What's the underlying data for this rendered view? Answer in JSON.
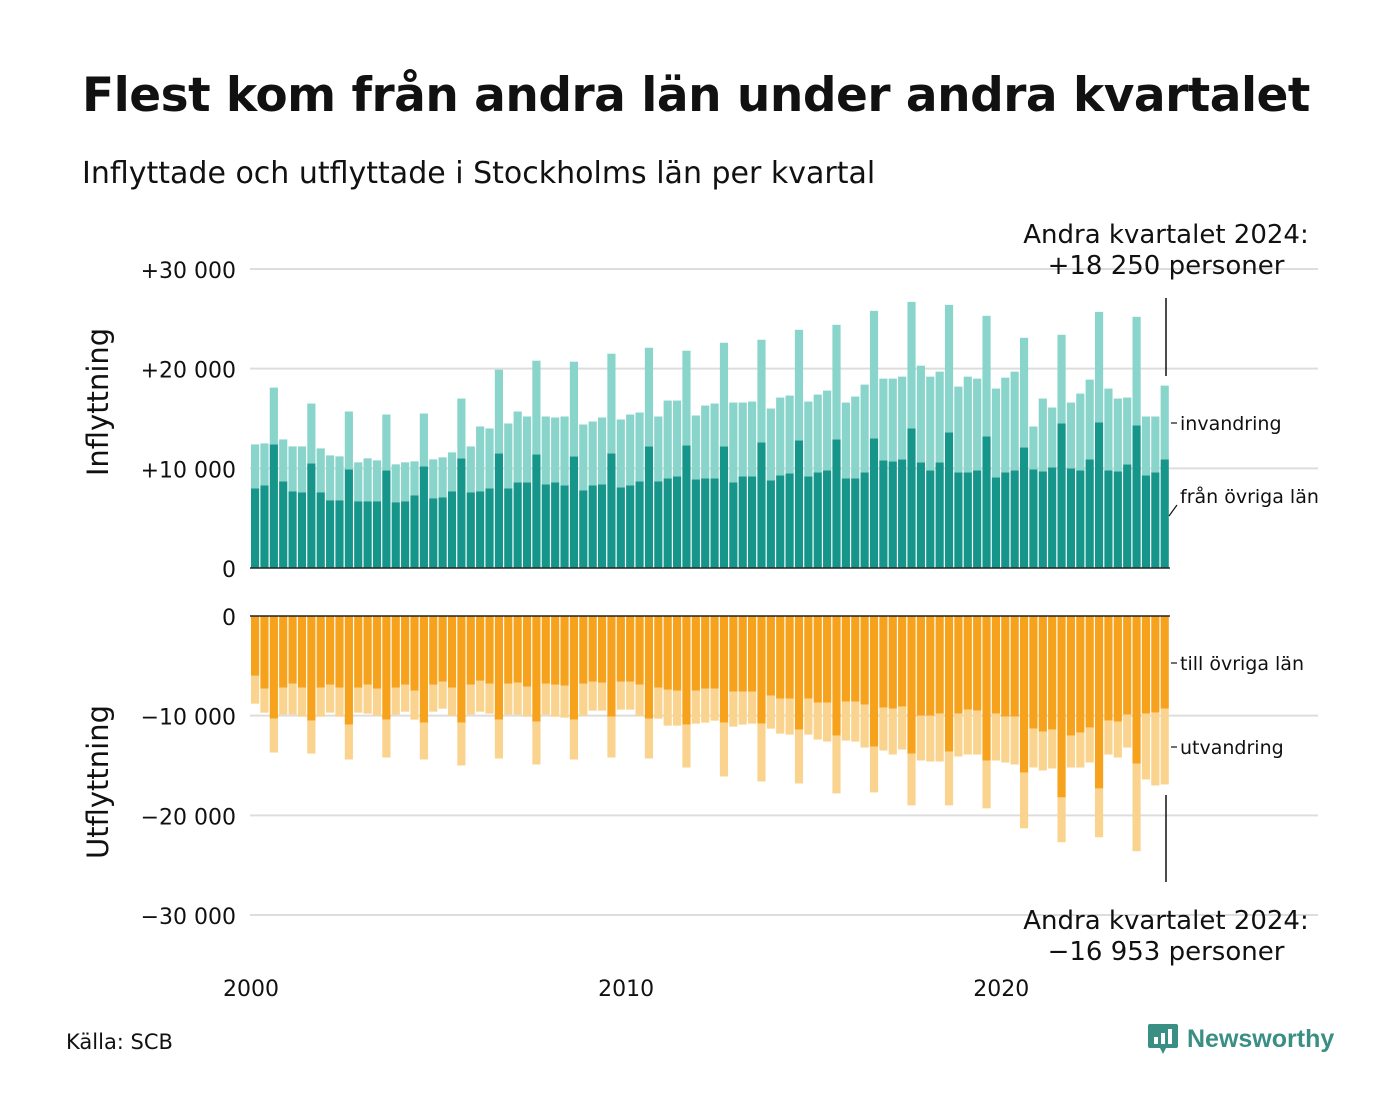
{
  "title": "Flest kom från andra län under andra kvartalet",
  "subtitle": "Inflyttade och utflyttade i Stockholms län per kvartal",
  "source": "Källa: SCB",
  "brand": "Newsworthy",
  "colors": {
    "in_domestic": "#16968a",
    "in_immigration": "#8ad5cb",
    "out_domestic": "#f6a21d",
    "out_emigration": "#fad48f",
    "grid": "#dddddd",
    "brand": "#3a8f84"
  },
  "chart_data": {
    "type": "bar",
    "stacked": true,
    "x_label": "",
    "x_ticks": [
      "2000",
      "2010",
      "2020"
    ],
    "x_range": [
      "2000 Q1",
      "2024 Q2"
    ],
    "grid": true,
    "panels": [
      {
        "name": "in",
        "ylabel": "Inflyttning",
        "yticks": [
          "+30 000",
          "+20 000",
          "+10 000",
          "0"
        ],
        "ylim": [
          0,
          30000
        ],
        "series": [
          {
            "name": "från övriga län",
            "values": [
              8000,
              8300,
              12400,
              8700,
              7700,
              7600,
              10500,
              7600,
              6800,
              6800,
              9900,
              6700,
              6700,
              6700,
              9800,
              6600,
              6700,
              7300,
              10200,
              7000,
              7100,
              7700,
              11000,
              7600,
              7700,
              8000,
              11500,
              8000,
              8600,
              8600,
              11400,
              8400,
              8600,
              8300,
              11200,
              7800,
              8300,
              8400,
              11500,
              8100,
              8300,
              8700,
              12200,
              8700,
              9000,
              9200,
              12300,
              8900,
              9000,
              9000,
              12200,
              8600,
              9200,
              9200,
              12600,
              8800,
              9300,
              9500,
              12800,
              9200,
              9600,
              9800,
              12900,
              9000,
              9000,
              9600,
              13000,
              10800,
              10700,
              10900,
              14000,
              10600,
              9800,
              10600,
              13600,
              9600,
              9600,
              9800,
              13200,
              9100,
              9600,
              9800,
              12100,
              9900,
              9700,
              10100,
              14500,
              10000,
              9800,
              10900,
              14600,
              9800,
              9700,
              10400,
              14300,
              9300,
              9600,
              10900
            ]
          },
          {
            "name": "invandring",
            "values": [
              4400,
              4200,
              5700,
              4200,
              4500,
              4600,
              6000,
              4400,
              4500,
              4400,
              5800,
              3900,
              4300,
              4100,
              5600,
              3800,
              3900,
              3400,
              5300,
              3900,
              4000,
              3900,
              6000,
              4600,
              6500,
              6000,
              8400,
              6500,
              7100,
              6600,
              9400,
              6800,
              6500,
              6900,
              9500,
              6600,
              6400,
              6700,
              10000,
              6800,
              7100,
              6900,
              9900,
              6500,
              7800,
              7600,
              9500,
              6400,
              7300,
              7500,
              10400,
              8000,
              7400,
              7500,
              10300,
              7200,
              7800,
              7800,
              11100,
              7500,
              7800,
              8000,
              11500,
              7600,
              8200,
              8800,
              12800,
              8200,
              8300,
              8300,
              12700,
              9700,
              9400,
              9100,
              12800,
              8600,
              9600,
              9200,
              12100,
              8900,
              9500,
              9900,
              11000,
              4300,
              7300,
              6000,
              8900,
              6600,
              7700,
              8000,
              11100,
              8200,
              7300,
              6700,
              10900,
              5900,
              5600,
              7400
            ]
          }
        ],
        "annotation": [
          "Andra kvartalet 2024:",
          "+18 250 personer"
        ],
        "series_labels": [
          "invandring",
          "från övriga län"
        ]
      },
      {
        "name": "out",
        "ylabel": "Utflyttning",
        "yticks": [
          "0",
          "−10 000",
          "−20 000",
          "−30 000"
        ],
        "ylim": [
          -30000,
          0
        ],
        "series": [
          {
            "name": "till övriga län",
            "values": [
              -6000,
              -7300,
              -10300,
              -7200,
              -6800,
              -7200,
              -10500,
              -7200,
              -6900,
              -7200,
              -10900,
              -7200,
              -6900,
              -7300,
              -10400,
              -7200,
              -6900,
              -7500,
              -10700,
              -6900,
              -6600,
              -7200,
              -10700,
              -6900,
              -6500,
              -6800,
              -10400,
              -6800,
              -6700,
              -7100,
              -10600,
              -6800,
              -6900,
              -7000,
              -10400,
              -6800,
              -6600,
              -6700,
              -10100,
              -6600,
              -6600,
              -6900,
              -10300,
              -7200,
              -7400,
              -7500,
              -10900,
              -7500,
              -7300,
              -7300,
              -10700,
              -7600,
              -7600,
              -7600,
              -10800,
              -8000,
              -8300,
              -8300,
              -11400,
              -8300,
              -8700,
              -8700,
              -12000,
              -8600,
              -8600,
              -8900,
              -13100,
              -9200,
              -9300,
              -9100,
              -13800,
              -10000,
              -10000,
              -9800,
              -13600,
              -9800,
              -9400,
              -9500,
              -14500,
              -9800,
              -10100,
              -10100,
              -15700,
              -11300,
              -11600,
              -11400,
              -18200,
              -12000,
              -11700,
              -11200,
              -17300,
              -10500,
              -10600,
              -9900,
              -14800,
              -9800,
              -9700,
              -9300
            ]
          },
          {
            "name": "utvandring",
            "values": [
              -2800,
              -2400,
              -3400,
              -2700,
              -3100,
              -2900,
              -3300,
              -2900,
              -2800,
              -2900,
              -3500,
              -2500,
              -2900,
              -2700,
              -3800,
              -2700,
              -2700,
              -2900,
              -3700,
              -2700,
              -2700,
              -2800,
              -4300,
              -3000,
              -3100,
              -3000,
              -3900,
              -3100,
              -3200,
              -3000,
              -4300,
              -3100,
              -3200,
              -3200,
              -4000,
              -3200,
              -2900,
              -2800,
              -4100,
              -2800,
              -2800,
              -3100,
              -4000,
              -3100,
              -3600,
              -3500,
              -4300,
              -3300,
              -3400,
              -3200,
              -5400,
              -3500,
              -3300,
              -3200,
              -5800,
              -3300,
              -3500,
              -3600,
              -5400,
              -3600,
              -3700,
              -3900,
              -5800,
              -3900,
              -4000,
              -4300,
              -4600,
              -4300,
              -4600,
              -4300,
              -5200,
              -4500,
              -4600,
              -4800,
              -5400,
              -4300,
              -4500,
              -4400,
              -4800,
              -4700,
              -4600,
              -4800,
              -5600,
              -3900,
              -3900,
              -3900,
              -4500,
              -3200,
              -3500,
              -3500,
              -4900,
              -3400,
              -3600,
              -3300,
              -8800,
              -6600,
              -7300,
              -7600
            ]
          }
        ],
        "annotation": [
          "Andra kvartalet 2024:",
          "−16 953 personer"
        ],
        "series_labels": [
          "till övriga län",
          "utvandring"
        ]
      }
    ]
  }
}
